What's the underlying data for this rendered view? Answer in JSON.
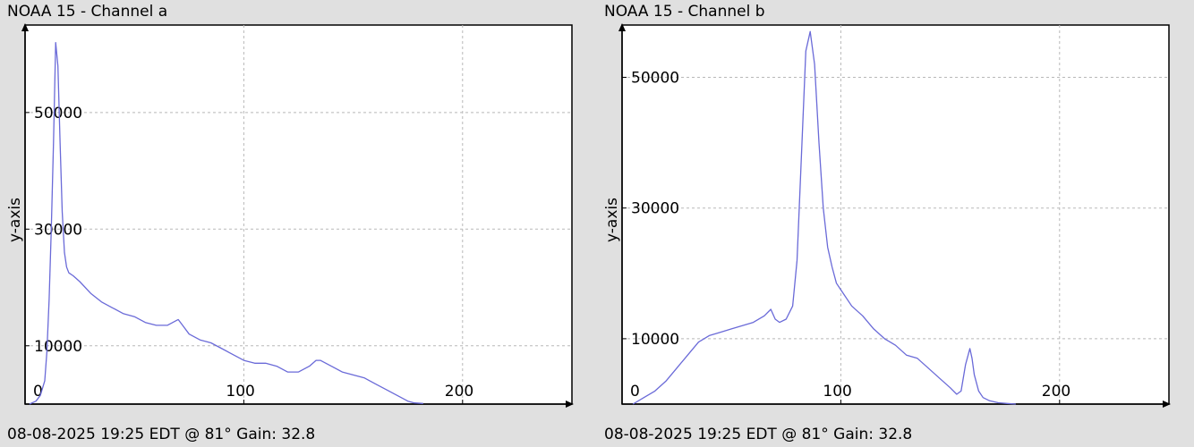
{
  "chart_data": [
    {
      "type": "line",
      "title": "NOAA 15 - Channel a",
      "subtitle": "08-08-2025 19:25 EDT @ 81° Gain: 32.8",
      "xlabel": "",
      "ylabel": "y-axis",
      "xlim": [
        0,
        250
      ],
      "ylim": [
        0,
        65000
      ],
      "xticks": [
        0,
        100,
        200
      ],
      "yticks": [
        10000,
        30000,
        50000
      ],
      "grid": true,
      "line_color": "#6a6ad8",
      "series": [
        {
          "x": [
            2,
            5,
            7,
            9,
            10,
            11,
            12,
            13,
            14,
            15,
            16,
            17,
            18,
            19,
            20,
            22,
            25,
            30,
            35,
            40,
            45,
            50,
            55,
            60,
            65,
            70,
            72,
            75,
            80,
            85,
            90,
            95,
            100,
            105,
            110,
            115,
            120,
            125,
            130,
            133,
            135,
            140,
            145,
            150,
            155,
            160,
            165,
            170,
            175,
            178,
            182
          ],
          "y": [
            0,
            500,
            1500,
            4000,
            9000,
            18000,
            30000,
            45000,
            62000,
            58000,
            45000,
            33000,
            26000,
            23500,
            22500,
            22000,
            21000,
            19000,
            17500,
            16500,
            15500,
            15000,
            14000,
            13500,
            13500,
            14500,
            13500,
            12000,
            11000,
            10500,
            9500,
            8500,
            7500,
            7000,
            7000,
            6500,
            5500,
            5500,
            6500,
            7500,
            7500,
            6500,
            5500,
            5000,
            4500,
            3500,
            2500,
            1500,
            500,
            200,
            100
          ]
        }
      ]
    },
    {
      "type": "line",
      "title": "NOAA 15 - Channel b",
      "subtitle": "08-08-2025 19:25 EDT @ 81° Gain: 32.8",
      "xlabel": "",
      "ylabel": "y-axis",
      "xlim": [
        0,
        250
      ],
      "ylim": [
        0,
        58000
      ],
      "xticks": [
        0,
        100,
        200
      ],
      "yticks": [
        10000,
        30000,
        50000
      ],
      "grid": true,
      "line_color": "#6a6ad8",
      "series": [
        {
          "x": [
            5,
            10,
            15,
            20,
            25,
            30,
            35,
            40,
            45,
            50,
            55,
            60,
            65,
            68,
            70,
            72,
            75,
            78,
            80,
            82,
            84,
            86,
            88,
            90,
            92,
            94,
            96,
            98,
            100,
            105,
            110,
            115,
            120,
            125,
            130,
            135,
            140,
            145,
            150,
            153,
            155,
            157,
            159,
            160,
            161,
            163,
            165,
            168,
            172,
            176,
            180
          ],
          "y": [
            0,
            1000,
            2000,
            3500,
            5500,
            7500,
            9500,
            10500,
            11000,
            11500,
            12000,
            12500,
            13500,
            14500,
            13000,
            12500,
            13000,
            15000,
            22000,
            38000,
            54000,
            57000,
            52000,
            40000,
            30000,
            24000,
            21000,
            18500,
            17500,
            15000,
            13500,
            11500,
            10000,
            9000,
            7500,
            7000,
            5500,
            4000,
            2500,
            1500,
            2000,
            6000,
            8500,
            7000,
            4500,
            2000,
            1000,
            500,
            200,
            100,
            0
          ]
        }
      ]
    }
  ]
}
